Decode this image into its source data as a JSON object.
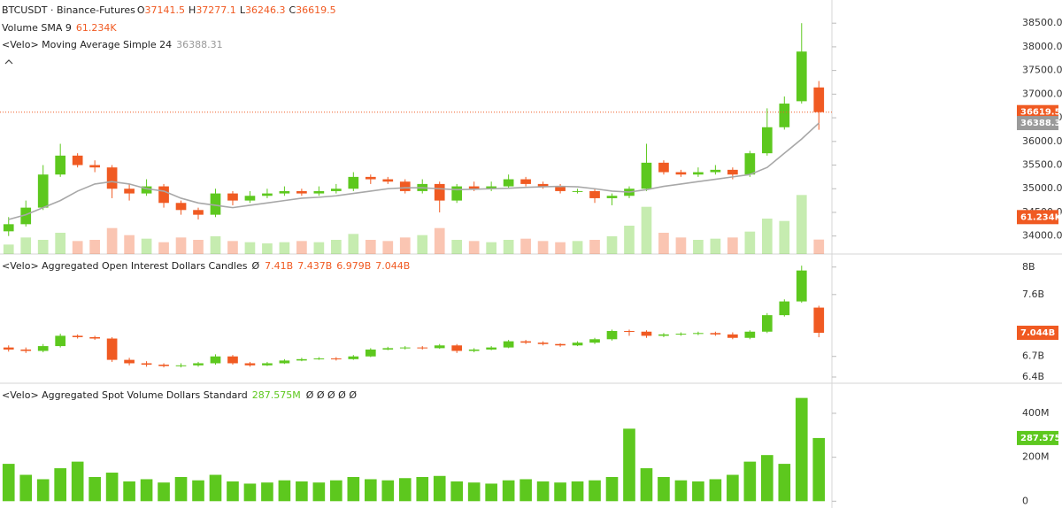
{
  "chart_data": [
    {
      "type": "candlestick",
      "symbol": "BTCUSDT · Binance-Futures",
      "ohlc_letters": [
        "O",
        "H",
        "L",
        "C"
      ],
      "up_color": "#5dc81e",
      "down_color": "#f05a22",
      "open": [
        34100,
        34250,
        34600,
        35300,
        35700,
        35500,
        35450,
        35000,
        34900,
        35050,
        34700,
        34550,
        34450,
        34900,
        34750,
        34850,
        34900,
        34950,
        34900,
        34950,
        35000,
        35250,
        35200,
        35150,
        34950,
        35100,
        34750,
        35050,
        35000,
        35050,
        35200,
        35100,
        35050,
        34950,
        34950,
        34800,
        34850,
        35000,
        35550,
        35350,
        35300,
        35350,
        35400,
        35300,
        35750,
        36300,
        36850,
        37141.5
      ],
      "high": [
        34400,
        34750,
        35500,
        35950,
        35750,
        35600,
        35500,
        35100,
        35200,
        35100,
        34750,
        34600,
        35000,
        34950,
        34950,
        35000,
        35050,
        35000,
        35050,
        35100,
        35350,
        35300,
        35250,
        35200,
        35200,
        35150,
        35100,
        35150,
        35150,
        35300,
        35250,
        35150,
        35100,
        35000,
        35000,
        34900,
        35050,
        35950,
        35600,
        35400,
        35450,
        35500,
        35450,
        35800,
        36700,
        36950,
        38500,
        37277.1
      ],
      "low": [
        34000,
        34200,
        34550,
        35250,
        35450,
        35350,
        34800,
        34750,
        34850,
        34600,
        34450,
        34350,
        34400,
        34650,
        34700,
        34800,
        34850,
        34850,
        34850,
        34900,
        34950,
        35100,
        35100,
        34900,
        34900,
        34500,
        34700,
        34950,
        34950,
        35000,
        35050,
        35000,
        34900,
        34900,
        34700,
        34650,
        34800,
        34950,
        35300,
        35250,
        35250,
        35300,
        35200,
        35250,
        35700,
        36250,
        36800,
        36246.3
      ],
      "close": [
        34250,
        34600,
        35300,
        35700,
        35500,
        35450,
        35000,
        34900,
        35050,
        34700,
        34550,
        34450,
        34900,
        34750,
        34850,
        34900,
        34950,
        34900,
        34950,
        35000,
        35250,
        35200,
        35150,
        34950,
        35100,
        34750,
        35050,
        35000,
        35050,
        35200,
        35100,
        35050,
        34950,
        34950,
        34800,
        34850,
        35000,
        35550,
        35350,
        35300,
        35350,
        35400,
        35300,
        35750,
        36300,
        36800,
        37900,
        36619.5
      ],
      "ylim": [
        33620,
        38990
      ],
      "yticks": [
        {
          "value": 34000,
          "label": "34000.0"
        },
        {
          "value": 34500,
          "label": "34500.0"
        },
        {
          "value": 35000,
          "label": "35000.0"
        },
        {
          "value": 35500,
          "label": "35500.0"
        },
        {
          "value": 36000,
          "label": "36000.0"
        },
        {
          "value": 36500,
          "label": "36500.0"
        },
        {
          "value": 37000,
          "label": "37000.0"
        },
        {
          "value": 37500,
          "label": "37500.0"
        },
        {
          "value": 38000,
          "label": "38000.0"
        },
        {
          "value": 38500,
          "label": "38500.0"
        }
      ],
      "sma": {
        "name": "<Velo> Moving Average Simple 24",
        "color": "#a8a8a8",
        "value_label": "36388.3",
        "values": [
          34350,
          34450,
          34600,
          34750,
          34950,
          35100,
          35150,
          35100,
          35000,
          34950,
          34800,
          34700,
          34650,
          34600,
          34650,
          34700,
          34750,
          34800,
          34820,
          34850,
          34900,
          34950,
          35000,
          35020,
          35020,
          35000,
          34980,
          34990,
          35000,
          35010,
          35030,
          35040,
          35050,
          35040,
          35000,
          34950,
          34930,
          34980,
          35050,
          35100,
          35150,
          35200,
          35250,
          35300,
          35450,
          35750,
          36050,
          36388.31
        ]
      },
      "volume": {
        "name": "Volume SMA 9",
        "label": "61.234K",
        "ylim": [
          0,
          300
        ],
        "values": [
          40,
          70,
          60,
          90,
          55,
          60,
          110,
          80,
          65,
          50,
          70,
          60,
          75,
          55,
          50,
          45,
          50,
          55,
          50,
          60,
          85,
          60,
          55,
          70,
          80,
          110,
          60,
          55,
          50,
          60,
          65,
          55,
          50,
          55,
          60,
          75,
          120,
          200,
          90,
          70,
          60,
          65,
          70,
          95,
          150,
          140,
          250,
          61.234
        ]
      }
    },
    {
      "type": "candlestick",
      "title": "<Velo> Aggregated Open Interest Dollars Candles",
      "symbol": "Ø",
      "header_labels": [
        "7.41B",
        "7.437B",
        "6.979B",
        "7.044B"
      ],
      "up_color": "#5dc81e",
      "down_color": "#f05a22",
      "open": [
        6.83,
        6.8,
        6.78,
        6.85,
        7.0,
        6.98,
        6.96,
        6.65,
        6.6,
        6.58,
        6.56,
        6.57,
        6.6,
        6.7,
        6.6,
        6.57,
        6.6,
        6.64,
        6.66,
        6.67,
        6.66,
        6.7,
        6.8,
        6.82,
        6.83,
        6.82,
        6.86,
        6.78,
        6.8,
        6.83,
        6.92,
        6.9,
        6.88,
        6.86,
        6.9,
        6.95,
        7.07,
        7.06,
        7.0,
        7.02,
        7.03,
        7.04,
        7.02,
        6.97,
        7.06,
        7.3,
        7.5,
        7.41
      ],
      "high": [
        6.86,
        6.83,
        6.88,
        7.03,
        7.02,
        7.0,
        6.98,
        6.68,
        6.63,
        6.6,
        6.6,
        6.62,
        6.73,
        6.72,
        6.62,
        6.62,
        6.66,
        6.68,
        6.69,
        6.69,
        6.72,
        6.82,
        6.84,
        6.85,
        6.85,
        6.88,
        6.88,
        6.82,
        6.85,
        6.94,
        6.94,
        6.92,
        6.89,
        6.92,
        6.97,
        7.09,
        7.09,
        7.08,
        7.04,
        7.05,
        7.06,
        7.06,
        7.05,
        7.08,
        7.33,
        7.53,
        8.02,
        7.437
      ],
      "low": [
        6.77,
        6.75,
        6.76,
        6.83,
        6.96,
        6.94,
        6.62,
        6.57,
        6.55,
        6.54,
        6.54,
        6.55,
        6.58,
        6.58,
        6.55,
        6.56,
        6.59,
        6.63,
        6.65,
        6.64,
        6.65,
        6.69,
        6.79,
        6.8,
        6.8,
        6.81,
        6.75,
        6.76,
        6.79,
        6.82,
        6.88,
        6.86,
        6.84,
        6.85,
        6.88,
        6.93,
        7.0,
        6.97,
        6.98,
        7.0,
        7.01,
        7.0,
        6.95,
        6.95,
        7.04,
        7.28,
        7.48,
        6.979
      ],
      "close": [
        6.8,
        6.78,
        6.85,
        7.0,
        6.98,
        6.96,
        6.65,
        6.6,
        6.58,
        6.56,
        6.57,
        6.6,
        6.7,
        6.6,
        6.57,
        6.6,
        6.64,
        6.66,
        6.67,
        6.66,
        6.7,
        6.8,
        6.82,
        6.83,
        6.82,
        6.86,
        6.78,
        6.8,
        6.83,
        6.92,
        6.9,
        6.88,
        6.86,
        6.9,
        6.95,
        7.07,
        7.06,
        7.0,
        7.02,
        7.03,
        7.04,
        7.02,
        6.97,
        7.06,
        7.3,
        7.5,
        7.95,
        7.044
      ],
      "ylim": [
        6.31,
        8.19
      ],
      "yticks": [
        {
          "value": 6.4,
          "label": "6.4B"
        },
        {
          "value": 6.7,
          "label": "6.7B"
        },
        {
          "value": 7.6,
          "label": "7.6B"
        },
        {
          "value": 8,
          "label": "8B"
        }
      ]
    },
    {
      "type": "bar",
      "title": "<Velo> Aggregated Spot Volume Dollars Standard",
      "value_label": "287.575M",
      "extra": "Ø Ø Ø Ø Ø",
      "color": "#5dc81e",
      "values": [
        170,
        120,
        100,
        150,
        180,
        110,
        130,
        90,
        100,
        85,
        110,
        95,
        120,
        90,
        80,
        85,
        95,
        90,
        85,
        95,
        110,
        100,
        95,
        105,
        110,
        115,
        90,
        85,
        80,
        95,
        100,
        90,
        85,
        90,
        95,
        110,
        330,
        150,
        110,
        95,
        90,
        100,
        120,
        180,
        210,
        170,
        470,
        287.575
      ],
      "ylim": [
        -31,
        537
      ],
      "yticks": [
        0,
        {
          "value": 200,
          "label": "200M"
        },
        {
          "value": 400,
          "label": "400M"
        }
      ]
    }
  ]
}
